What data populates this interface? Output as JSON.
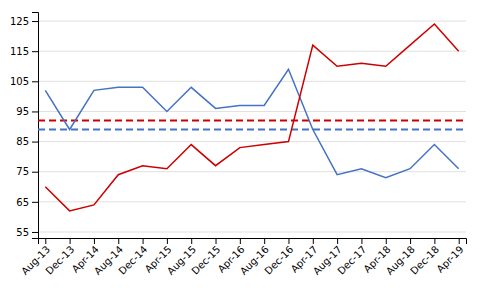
{
  "chart_data": {
    "type": "line",
    "categories": [
      "Aug-13",
      "Dec-13",
      "Apr-14",
      "Aug-14",
      "Dec-14",
      "Apr-15",
      "Aug-15",
      "Dec-15",
      "Apr-16",
      "Aug-16",
      "Dec-16",
      "Apr-17",
      "Aug-17",
      "Dec-17",
      "Apr-18",
      "Aug-18",
      "Dec-18",
      "Apr-19"
    ],
    "series": [
      {
        "color": "#4472c4",
        "line_style": "solid",
        "values": [
          102,
          89,
          102,
          103,
          103,
          95,
          103,
          96,
          97,
          97,
          109,
          89,
          74,
          76,
          73,
          76,
          84,
          76
        ]
      },
      {
        "color": "#cc0000",
        "line_style": "solid",
        "values": [
          70,
          62,
          64,
          74,
          77,
          76,
          84,
          77,
          83,
          84,
          85,
          117,
          110,
          111,
          110,
          117,
          124,
          115
        ]
      }
    ],
    "reference_lines": [
      {
        "y": 89,
        "color": "#4472c4",
        "line_style": "dashed"
      },
      {
        "y": 92,
        "color": "#cc0000",
        "line_style": "dashed"
      }
    ],
    "ylim": [
      53,
      128
    ],
    "yticks": [
      55,
      65,
      75,
      85,
      95,
      105,
      115,
      125
    ],
    "grid": true
  }
}
